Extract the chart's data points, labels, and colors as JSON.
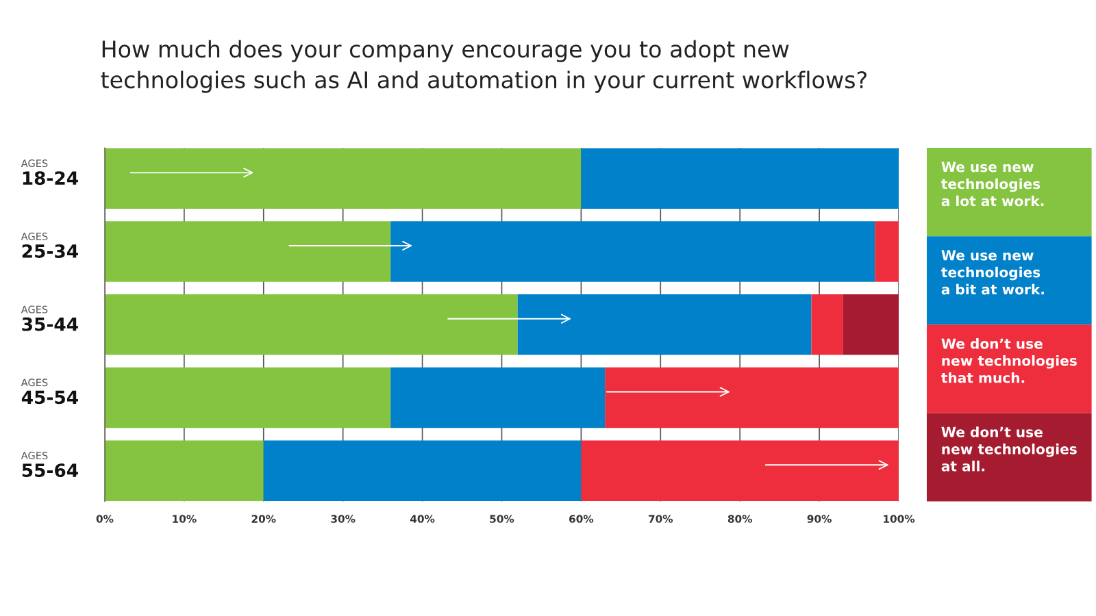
{
  "chart_data": {
    "type": "bar",
    "orientation": "horizontal",
    "stacked": true,
    "title": "How much does your company encourage you to adopt new\ntechnologies such as AI and automation in your current workflows?",
    "categories": [
      "AGES\n18-24",
      "AGES\n25-34",
      "AGES\n35-44",
      "AGES\n45-54",
      "AGES\n55-64"
    ],
    "series": [
      {
        "name": "We use new\ntechnologies\na lot at work.",
        "color": "#84c441",
        "values": [
          60,
          36,
          52,
          36,
          20
        ]
      },
      {
        "name": "We use new\ntechnologies\na bit at work.",
        "color": "#0081c9",
        "values": [
          40,
          61,
          37,
          27,
          40
        ]
      },
      {
        "name": "We don’t use\nnew technologies\nthat much.",
        "color": "#ee2e3c",
        "values": [
          0,
          3,
          4,
          37,
          40
        ]
      },
      {
        "name": "We don’t use\nnew technologies\nat all.",
        "color": "#a51c30",
        "values": [
          0,
          0,
          7,
          0,
          0
        ]
      }
    ],
    "xlim": [
      0,
      100
    ],
    "xticks": [
      {
        "value": 0,
        "label": "0%"
      },
      {
        "value": 10,
        "label": "10%"
      },
      {
        "value": 20,
        "label": "20%"
      },
      {
        "value": 30,
        "label": "30%"
      },
      {
        "value": 40,
        "label": "40%"
      },
      {
        "value": 50,
        "label": "50%"
      },
      {
        "value": 60,
        "label": "60%"
      },
      {
        "value": 70,
        "label": "70%"
      },
      {
        "value": 80,
        "label": "80%"
      },
      {
        "value": 90,
        "label": "90%"
      },
      {
        "value": 100,
        "label": "100%"
      }
    ],
    "grid": "x",
    "legend": "right"
  }
}
